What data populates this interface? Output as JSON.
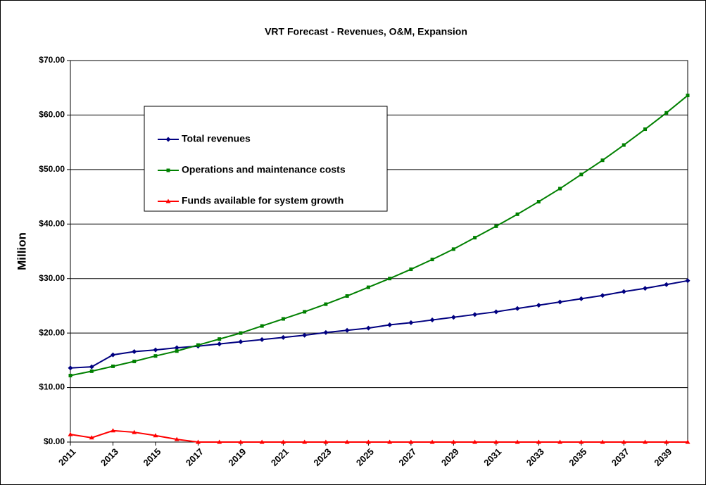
{
  "chart_data": {
    "type": "line",
    "title": "VRT Forecast - Revenues, O&M, Expansion",
    "y_label": "Million",
    "x": [
      2011,
      2012,
      2013,
      2014,
      2015,
      2016,
      2017,
      2018,
      2019,
      2020,
      2021,
      2022,
      2023,
      2024,
      2025,
      2026,
      2027,
      2028,
      2029,
      2030,
      2031,
      2032,
      2033,
      2034,
      2035,
      2036,
      2037,
      2038,
      2039,
      2040
    ],
    "xlim": [
      2011,
      2040
    ],
    "xticks": [
      2011,
      2013,
      2015,
      2017,
      2019,
      2021,
      2023,
      2025,
      2027,
      2029,
      2031,
      2033,
      2035,
      2037,
      2039
    ],
    "ylim": [
      0,
      70
    ],
    "yticks": [
      {
        "value": 0,
        "label": "$0.00"
      },
      {
        "value": 10,
        "label": "$10.00"
      },
      {
        "value": 20,
        "label": "$20.00"
      },
      {
        "value": 30,
        "label": "$30.00"
      },
      {
        "value": 40,
        "label": "$40.00"
      },
      {
        "value": 50,
        "label": "$50.00"
      },
      {
        "value": 60,
        "label": "$60.00"
      },
      {
        "value": 70,
        "label": "$70.00"
      }
    ],
    "grid": true,
    "series": [
      {
        "name": "Total revenues",
        "color": "#000080",
        "marker": "diamond",
        "values": [
          13.6,
          13.8,
          16.0,
          16.6,
          16.9,
          17.3,
          17.6,
          18.0,
          18.4,
          18.8,
          19.2,
          19.6,
          20.1,
          20.5,
          20.9,
          21.5,
          21.9,
          22.4,
          22.9,
          23.4,
          23.9,
          24.5,
          25.1,
          25.7,
          26.3,
          26.9,
          27.6,
          28.2,
          28.9,
          29.6
        ]
      },
      {
        "name": "Operations and maintenance costs",
        "color": "#008000",
        "marker": "square",
        "values": [
          12.2,
          13.0,
          13.9,
          14.8,
          15.8,
          16.7,
          17.8,
          18.9,
          20.0,
          21.3,
          22.6,
          23.9,
          25.3,
          26.8,
          28.4,
          30.0,
          31.7,
          33.5,
          35.4,
          37.5,
          39.6,
          41.8,
          44.1,
          46.5,
          49.1,
          51.7,
          54.5,
          57.4,
          60.4,
          63.6
        ]
      },
      {
        "name": "Funds available for system growth",
        "color": "#ff0000",
        "marker": "triangle",
        "values": [
          1.4,
          0.8,
          2.1,
          1.8,
          1.2,
          0.5,
          0,
          0,
          0,
          0,
          0,
          0,
          0,
          0,
          0,
          0,
          0,
          0,
          0,
          0,
          0,
          0,
          0,
          0,
          0,
          0,
          0,
          0,
          0,
          0
        ]
      }
    ]
  }
}
